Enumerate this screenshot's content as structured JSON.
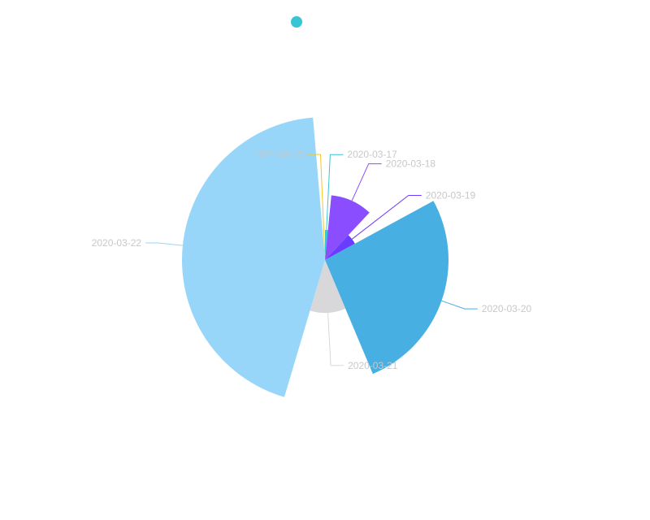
{
  "chart_data": {
    "type": "pie",
    "variant": "rose-radius",
    "title": "",
    "legend": {
      "placement": "top-center",
      "entries": [
        {
          "name": "",
          "color": "#36c6d3"
        }
      ]
    },
    "slices": [
      {
        "label": "2020-03-17",
        "value": 37,
        "angle_fraction": 0.0156,
        "color": "#36c6d3"
      },
      {
        "label": "2020-03-18",
        "value": 80,
        "angle_fraction": 0.1044,
        "color": "#8a4dff"
      },
      {
        "label": "2020-03-19",
        "value": 42,
        "angle_fraction": 0.0505,
        "color": "#6a3cff"
      },
      {
        "label": "2020-03-20",
        "value": 152,
        "angle_fraction": 0.2662,
        "color": "#48afe3"
      },
      {
        "label": "2020-03-21",
        "value": 65,
        "angle_fraction": 0.1092,
        "color": "#d8d8db"
      },
      {
        "label": "2020-03-22",
        "value": 176,
        "angle_fraction": 0.4407,
        "color": "#97d6f9"
      },
      {
        "label": "2020-03-23",
        "value": 5,
        "angle_fraction": 0.0134,
        "color": "#f2c62c"
      }
    ]
  }
}
